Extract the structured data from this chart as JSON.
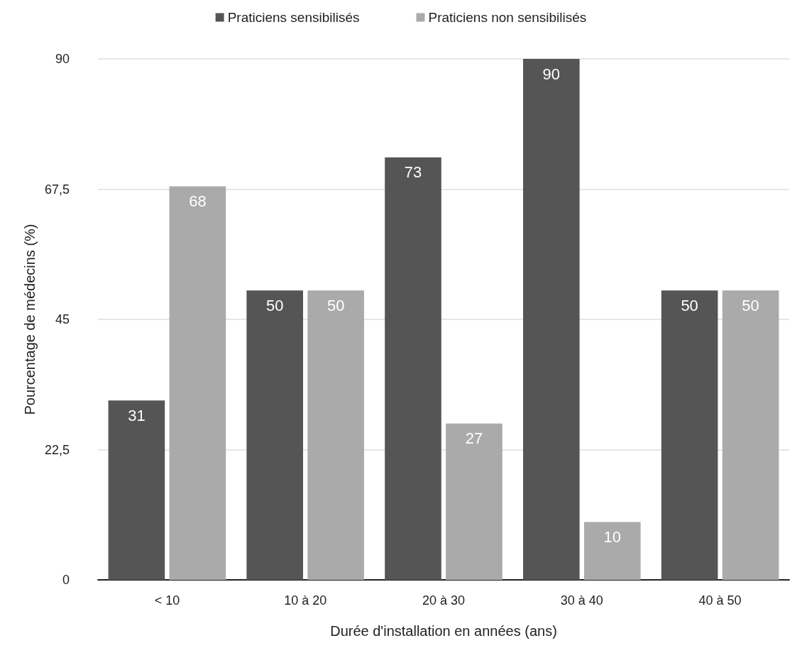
{
  "chart_data": {
    "type": "bar",
    "xlabel": "Durée d'installation en années (ans)",
    "ylabel": "Pourcentage de médecins (%)",
    "categories": [
      "< 10",
      "10 à 20",
      "20 à 30",
      "30 à 40",
      "40 à 50"
    ],
    "series": [
      {
        "name": "Praticiens sensibilisés",
        "color": "#555555",
        "values": [
          31,
          50,
          73,
          90,
          50
        ]
      },
      {
        "name": "Praticiens non sensibilisés",
        "color": "#aaaaaa",
        "values": [
          68,
          50,
          27,
          10,
          50
        ]
      }
    ],
    "ylim": [
      0,
      90
    ],
    "yticks": [
      0,
      {
        "value": 22.5,
        "label": "22,5"
      },
      45,
      {
        "value": 67.5,
        "label": "67,5"
      },
      90
    ],
    "grid": "y",
    "legend": "top",
    "data_labels": true
  }
}
